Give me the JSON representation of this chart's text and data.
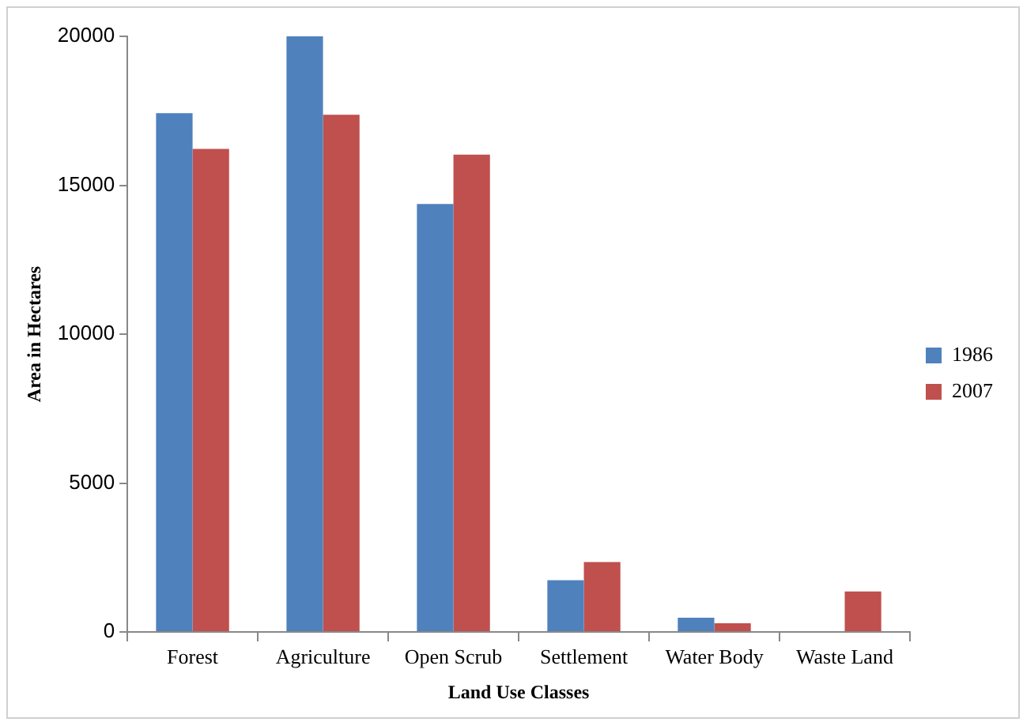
{
  "chart_data": {
    "type": "bar",
    "xlabel": "Land Use Classes",
    "ylabel": "Area in Hectares",
    "categories": [
      "Forest",
      "Agriculture",
      "Open Scrub",
      "Settlement",
      "Water Body",
      "Waste Land"
    ],
    "series": [
      {
        "name": "1986",
        "color": "#4f81bd",
        "values": [
          17420,
          20000,
          14370,
          1740,
          480,
          0
        ]
      },
      {
        "name": "2007",
        "color": "#c0504d",
        "values": [
          16220,
          17370,
          16030,
          2350,
          290,
          1360
        ]
      }
    ],
    "ylim": [
      0,
      20000
    ],
    "yticks": [
      0,
      5000,
      10000,
      15000,
      20000
    ],
    "grid": false,
    "legend": "right"
  }
}
